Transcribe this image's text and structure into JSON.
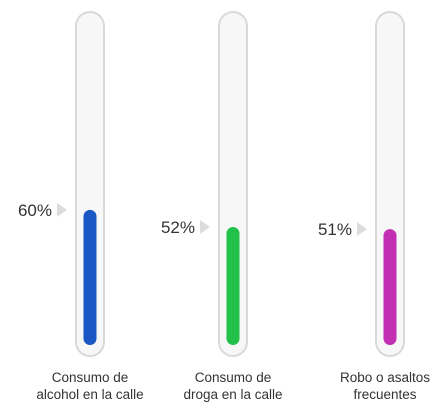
{
  "chart_data": {
    "type": "bar",
    "orientation": "vertical",
    "categories": [
      "Consumo de alcohol en la calle",
      "Consumo de droga en la calle",
      "Robo o asaltos frecuentes"
    ],
    "category_label_lines": [
      [
        "Consumo de",
        "alcohol en la calle"
      ],
      [
        "Consumo de",
        "droga en la calle"
      ],
      [
        "Robo o asaltos",
        "frecuentes"
      ]
    ],
    "values": [
      60,
      52,
      51
    ],
    "value_labels": [
      "60%",
      "52%",
      "51%"
    ],
    "unit": "%",
    "ylim": [
      0,
      100
    ],
    "colors": [
      "#1a56c4",
      "#22c24a",
      "#c22fb3"
    ],
    "track_color": "#f7f7f7",
    "track_border_color": "#d9d9d9",
    "pointer_color": "#dcdcdc",
    "label_color": "#333333"
  }
}
